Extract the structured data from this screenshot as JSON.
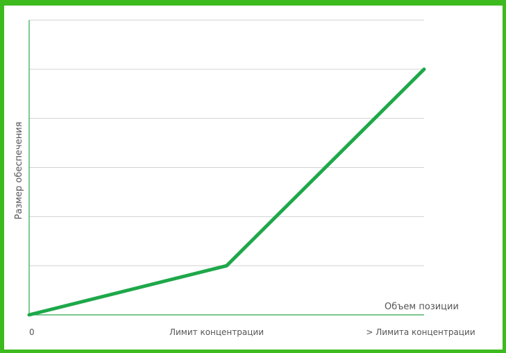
{
  "chart_data": {
    "type": "line",
    "title": "",
    "xlabel": "Объем позиции",
    "ylabel": "Размер обеспечения",
    "categories": [
      "0",
      "Лимит концентрации",
      "> Лимита концентрации"
    ],
    "series": [
      {
        "values": [
          0,
          1,
          5
        ]
      }
    ],
    "ylim": [
      0,
      6
    ],
    "grid": true,
    "legend": "none",
    "colors": {
      "line": "#1ea84a",
      "axis": "#2aa84a",
      "grid": "#d0d0d0",
      "border": "#3cba1e"
    }
  }
}
